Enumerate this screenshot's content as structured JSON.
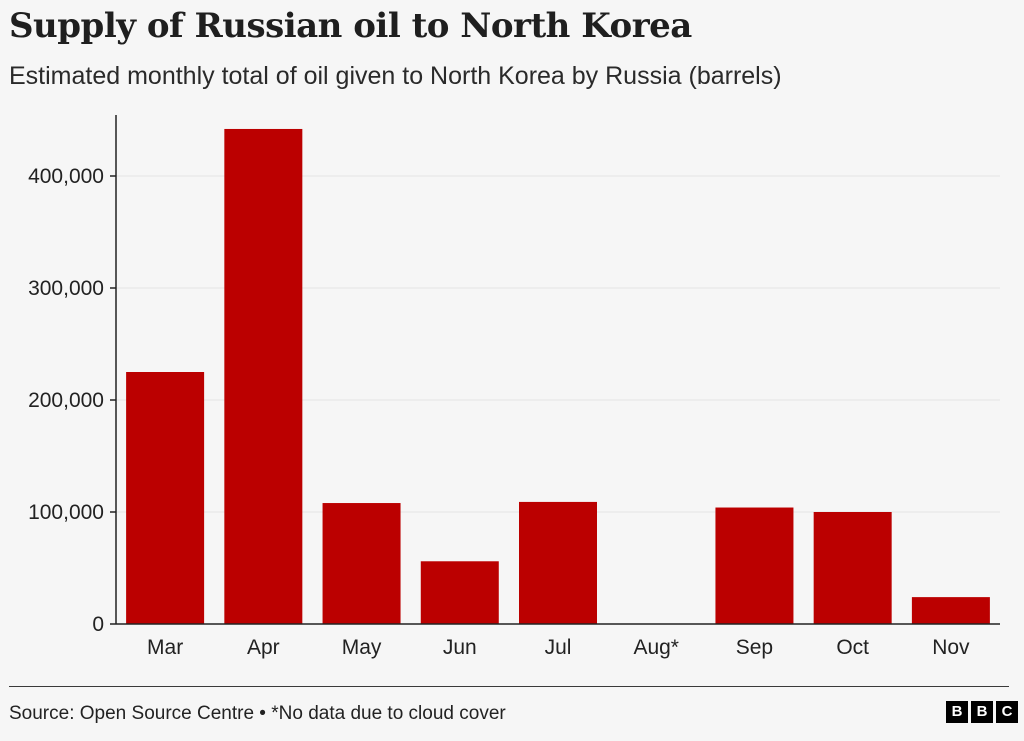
{
  "header": {
    "title": "Supply of Russian oil to North Korea",
    "subtitle": "Estimated monthly total of oil given to North Korea by Russia (barrels)"
  },
  "footer": {
    "source": "Source: Open Source Centre • *No data due to cloud cover",
    "logo_letters": [
      "B",
      "B",
      "C"
    ]
  },
  "colors": {
    "bar": "#bb0000",
    "gridline": "#e4e4e4",
    "axis": "#222222"
  },
  "chart_data": {
    "type": "bar",
    "categories": [
      "Mar",
      "Apr",
      "May",
      "Jun",
      "Jul",
      "Aug*",
      "Sep",
      "Oct",
      "Nov"
    ],
    "values": [
      225000,
      442000,
      108000,
      56000,
      109000,
      null,
      104000,
      100000,
      24000
    ],
    "title": "Supply of Russian oil to North Korea",
    "ylabel": "",
    "xlabel": "",
    "ylim": [
      0,
      450000
    ],
    "yticks": [
      0,
      100000,
      200000,
      300000,
      400000
    ],
    "ytick_labels": [
      "0",
      "100,000",
      "200,000",
      "300,000",
      "400,000"
    ],
    "grid": true,
    "legend": "none"
  }
}
